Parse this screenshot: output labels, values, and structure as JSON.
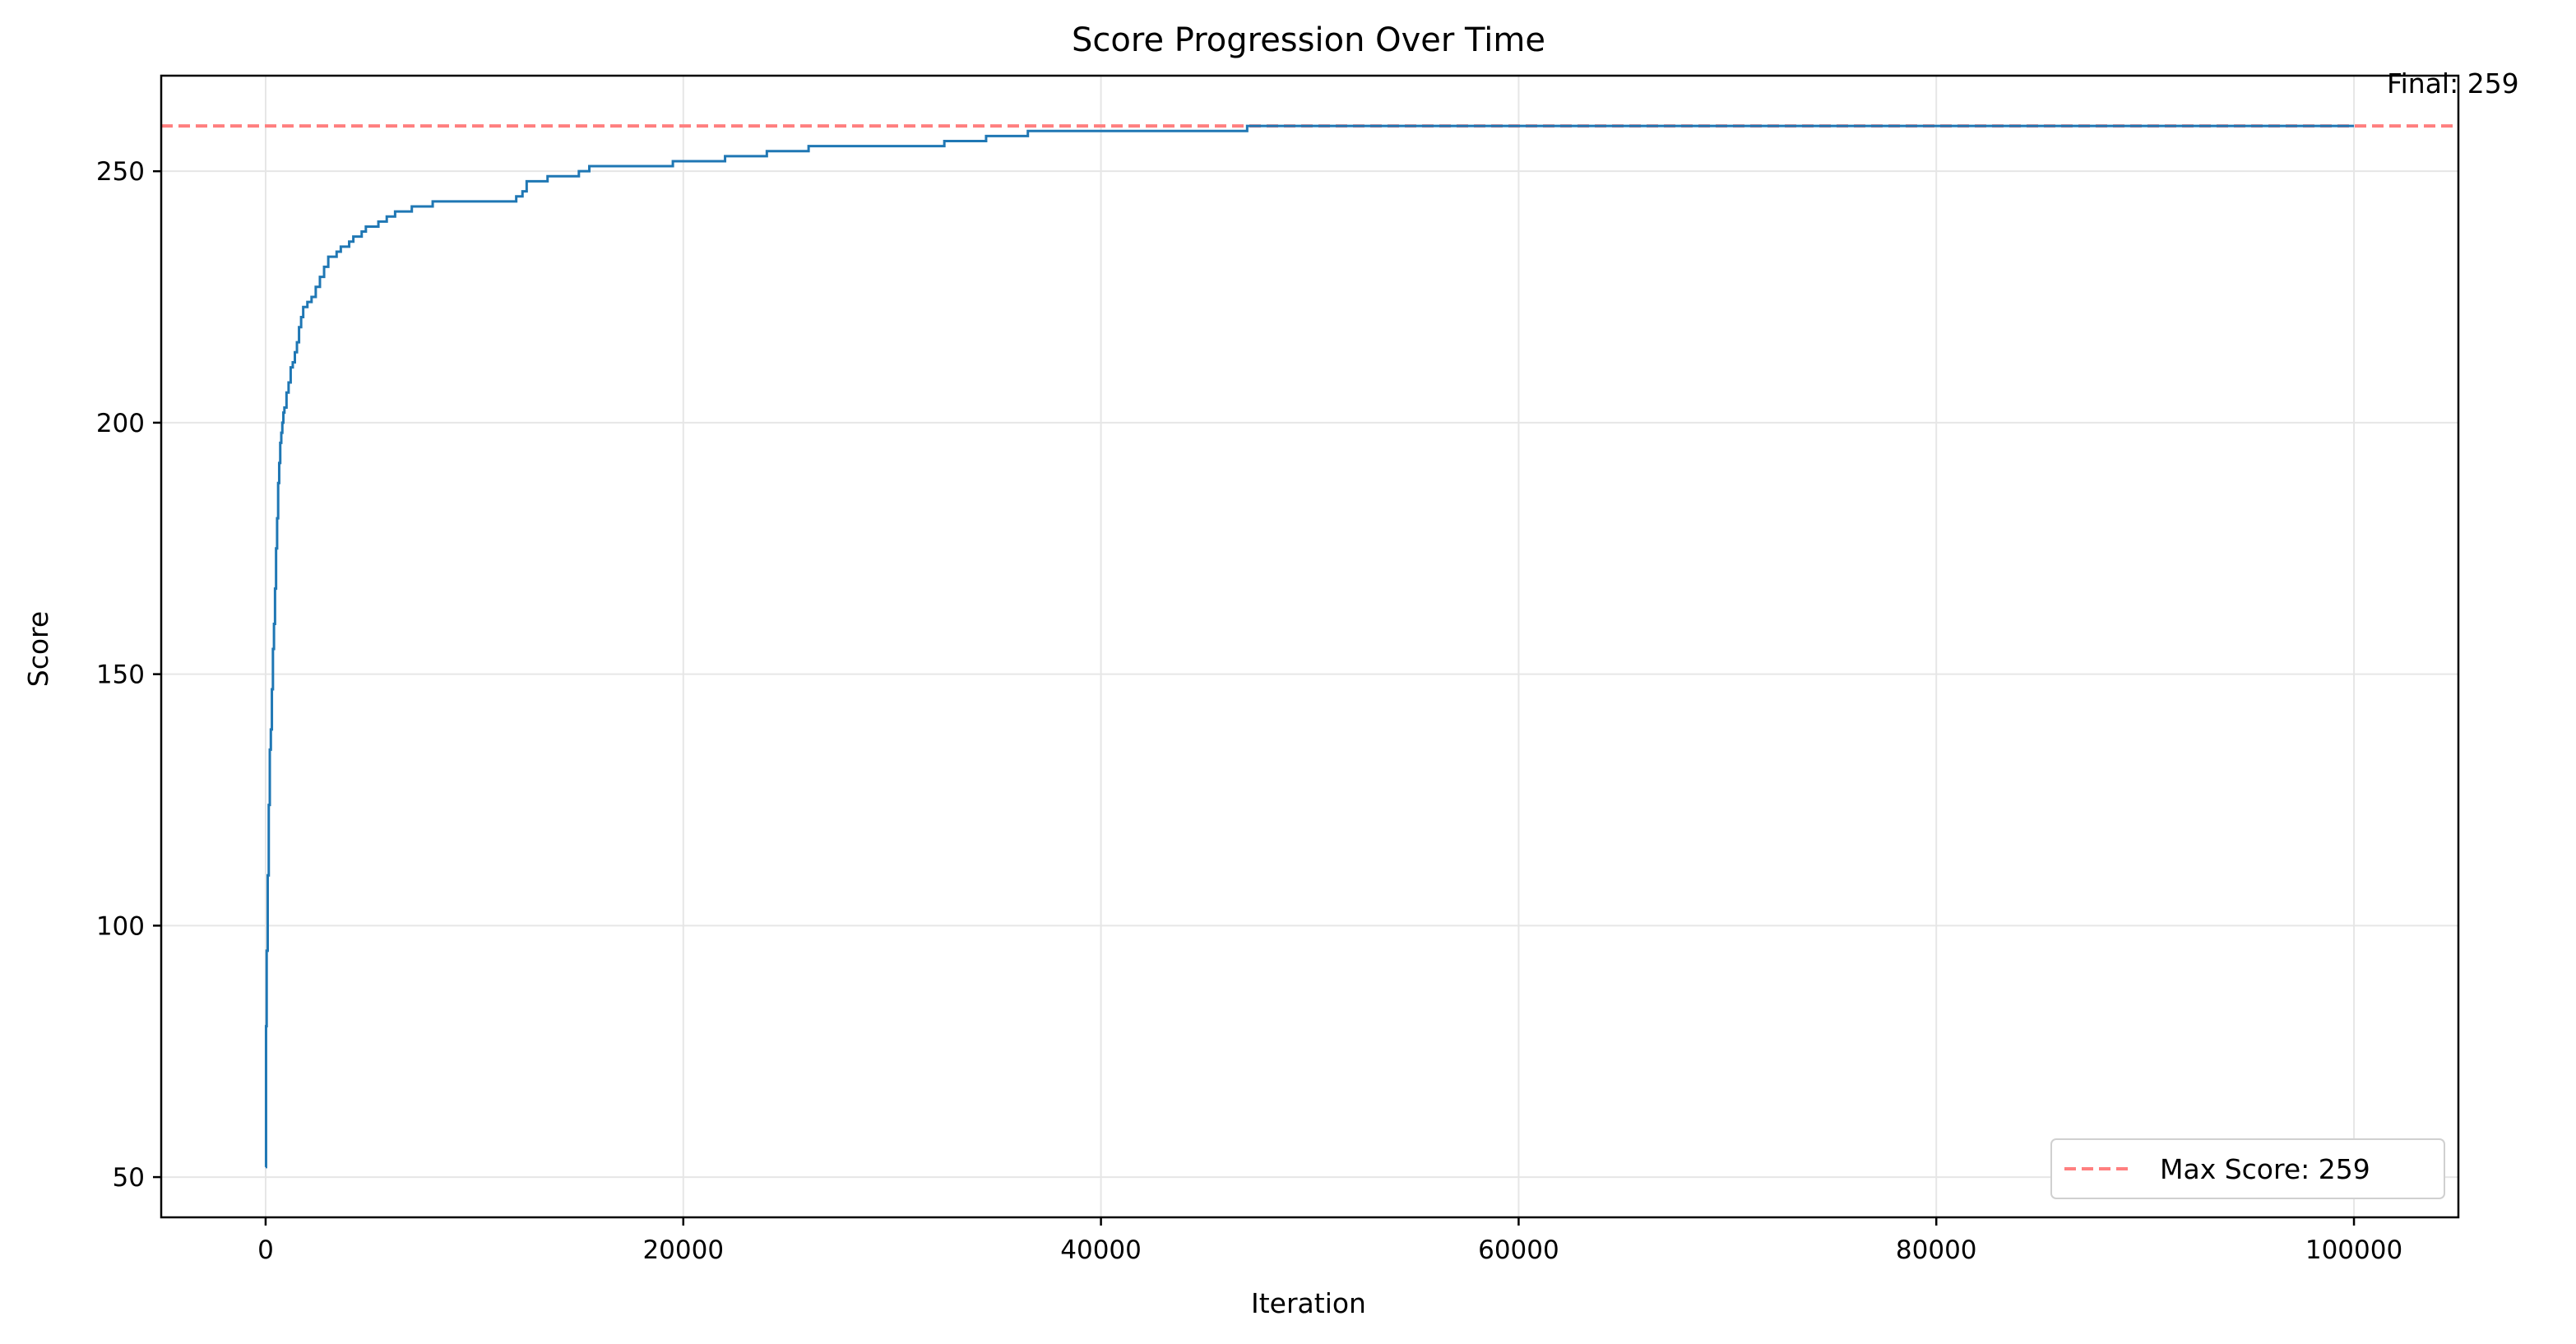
{
  "chart_data": {
    "type": "line",
    "title": "Score Progression Over Time",
    "xlabel": "Iteration",
    "ylabel": "Score",
    "xlim": [
      -5000,
      105000
    ],
    "ylim": [
      42,
      269
    ],
    "xticks": [
      0,
      20000,
      40000,
      60000,
      80000,
      100000
    ],
    "xtick_labels": [
      "0",
      "20000",
      "40000",
      "60000",
      "80000",
      "100000"
    ],
    "yticks": [
      50,
      100,
      150,
      200,
      250
    ],
    "ytick_labels": [
      "50",
      "100",
      "150",
      "200",
      "250"
    ],
    "grid": true,
    "series": [
      {
        "color": "#1f77b4",
        "step": true,
        "x": [
          0,
          20,
          50,
          100,
          150,
          200,
          250,
          300,
          350,
          400,
          450,
          500,
          550,
          600,
          650,
          700,
          750,
          800,
          850,
          900,
          1000,
          1100,
          1200,
          1300,
          1400,
          1500,
          1600,
          1700,
          1800,
          2000,
          2200,
          2400,
          2600,
          2800,
          3000,
          3200,
          3400,
          3600,
          3800,
          4000,
          4200,
          4400,
          4600,
          4800,
          5000,
          5400,
          5800,
          6200,
          6600,
          7000,
          7500,
          8000,
          8500,
          9000,
          12000,
          12300,
          12500,
          13000,
          13500,
          14000,
          15000,
          15500,
          19000,
          19500,
          21000,
          22000,
          24000,
          26000,
          32500,
          33000,
          34500,
          36000,
          36500,
          46500,
          47000,
          100000
        ],
        "y": [
          52,
          80,
          95,
          110,
          124,
          135,
          139,
          147,
          155,
          160,
          167,
          175,
          181,
          188,
          192,
          196,
          198,
          200,
          202,
          203,
          206,
          208,
          211,
          212,
          214,
          216,
          219,
          221,
          223,
          224,
          225,
          227,
          229,
          231,
          233,
          233,
          234,
          235,
          235,
          236,
          237,
          237,
          238,
          239,
          239,
          240,
          241,
          242,
          242,
          243,
          243,
          244,
          244,
          244,
          245,
          246,
          248,
          248,
          249,
          249,
          250,
          251,
          251,
          252,
          252,
          253,
          254,
          255,
          256,
          256,
          257,
          257,
          258,
          258,
          259,
          259
        ]
      }
    ],
    "reference_lines": [
      {
        "y": 259,
        "color": "#ff7f7f",
        "style": "dashed",
        "label": "Max Score: 259"
      }
    ],
    "annotations": [
      {
        "text": "Final: 259",
        "x": 100000,
        "y": 259
      }
    ],
    "legend": {
      "location": "lower-right",
      "entries": [
        "Max Score: 259"
      ]
    }
  }
}
